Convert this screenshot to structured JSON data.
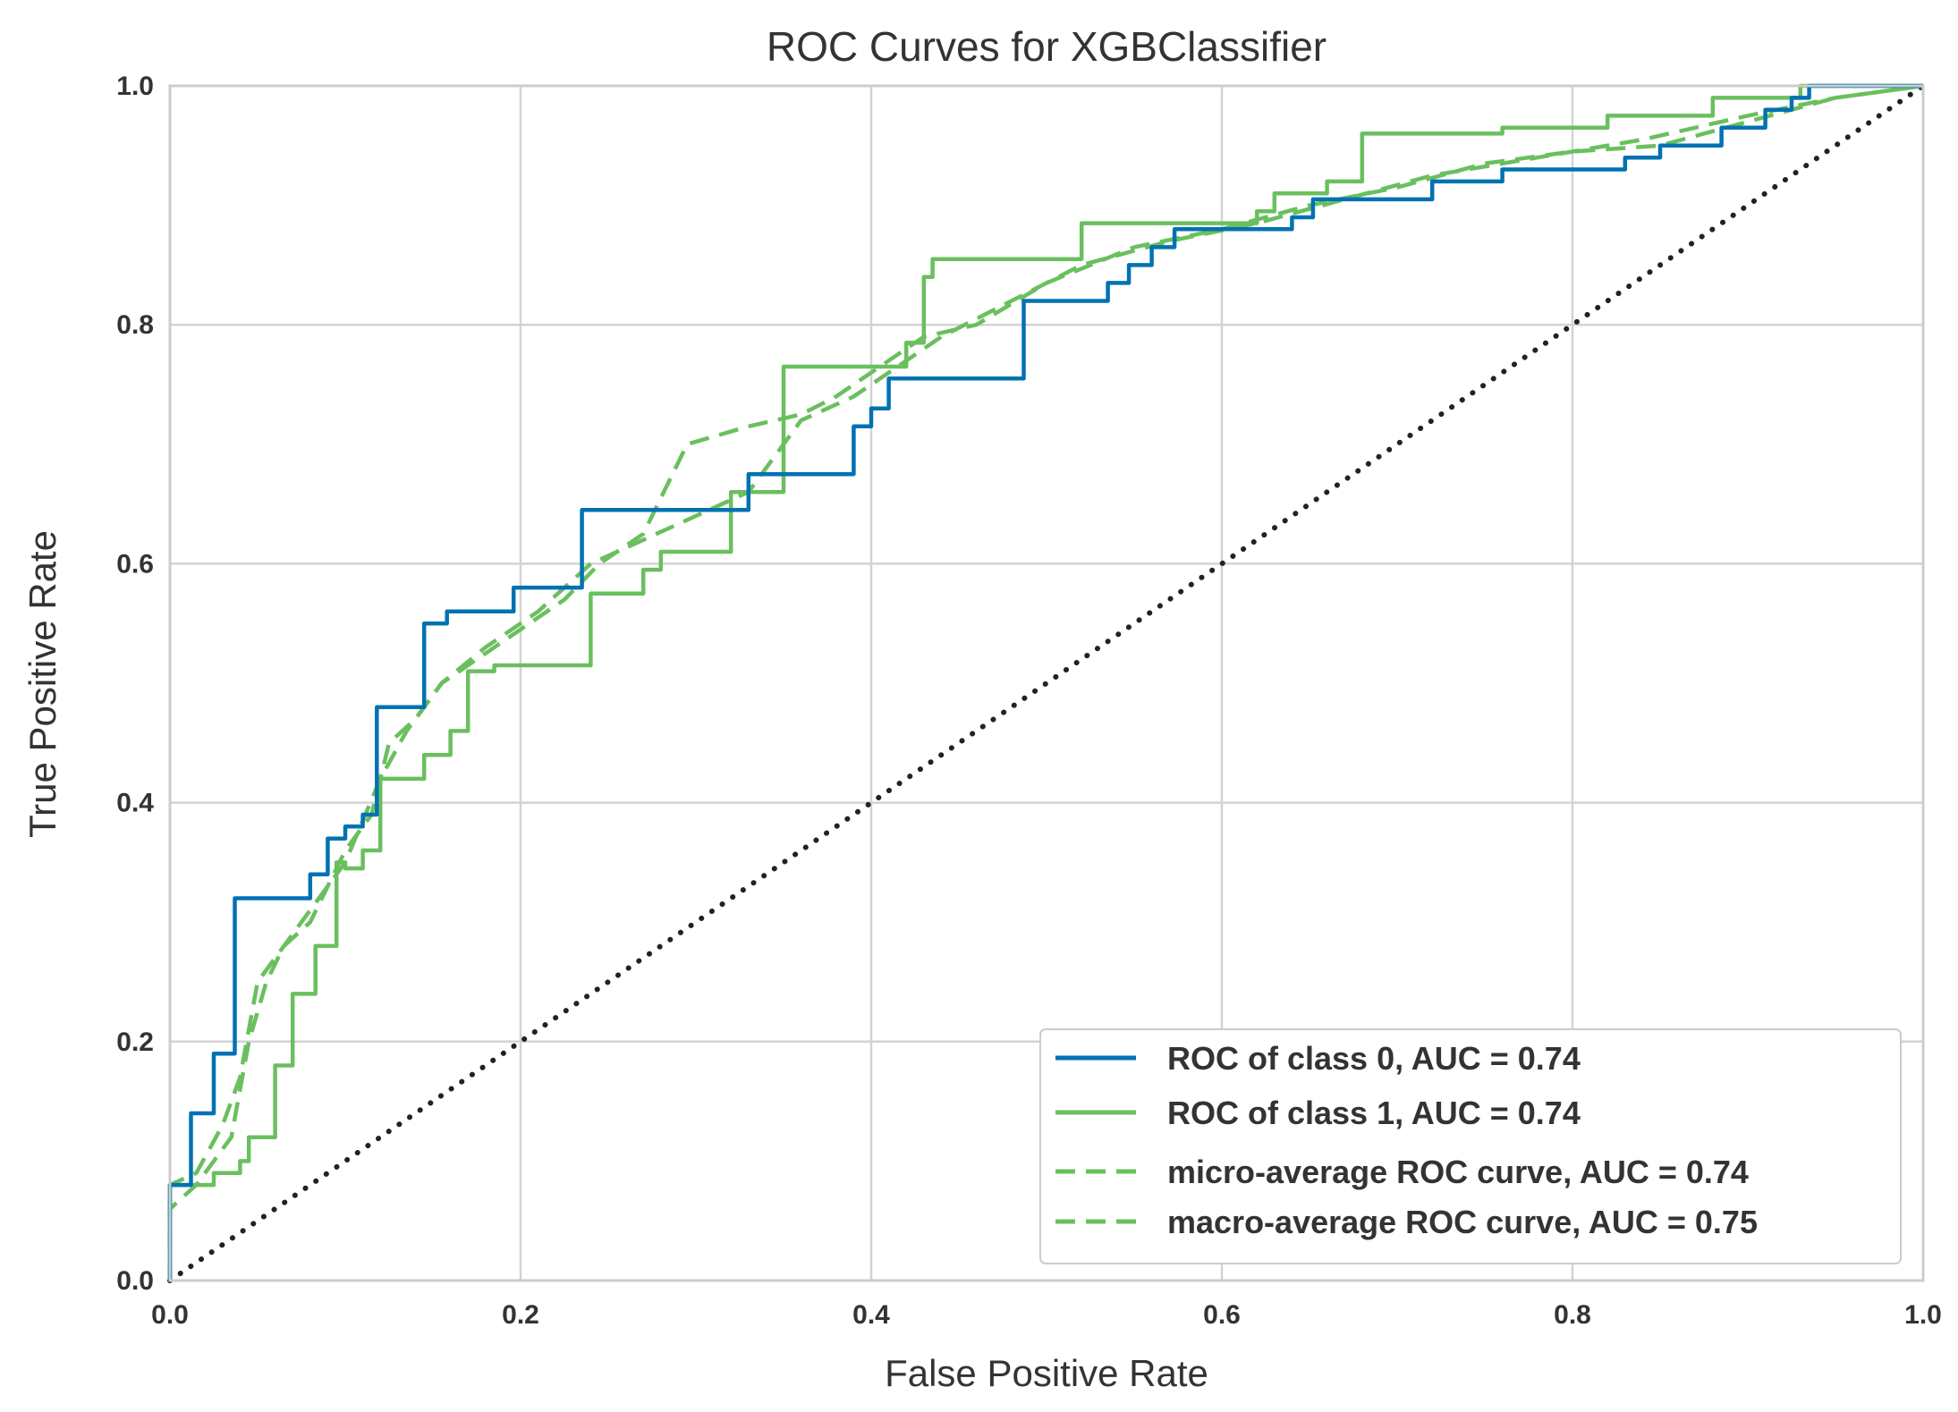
{
  "chart_data": {
    "type": "line",
    "title": "ROC Curves for XGBClassifier",
    "xlabel": "False Positive Rate",
    "ylabel": "True Positive Rate",
    "xlim": [
      0.0,
      1.0
    ],
    "ylim": [
      0.0,
      1.0
    ],
    "xticks": [
      "0.0",
      "0.2",
      "0.4",
      "0.6",
      "0.8",
      "1.0"
    ],
    "yticks": [
      "0.0",
      "0.2",
      "0.4",
      "0.6",
      "0.8",
      "1.0"
    ],
    "grid": true,
    "legend_position": "lower-right",
    "series": [
      {
        "name": "ROC of class 0, AUC = 0.74",
        "color": "#0072B2",
        "style": "solid",
        "points": [
          [
            0.0,
            0.0
          ],
          [
            0.0,
            0.08
          ],
          [
            0.012,
            0.08
          ],
          [
            0.012,
            0.14
          ],
          [
            0.025,
            0.14
          ],
          [
            0.025,
            0.19
          ],
          [
            0.037,
            0.19
          ],
          [
            0.037,
            0.32
          ],
          [
            0.08,
            0.32
          ],
          [
            0.08,
            0.34
          ],
          [
            0.09,
            0.34
          ],
          [
            0.09,
            0.37
          ],
          [
            0.1,
            0.37
          ],
          [
            0.1,
            0.38
          ],
          [
            0.11,
            0.38
          ],
          [
            0.11,
            0.39
          ],
          [
            0.118,
            0.39
          ],
          [
            0.118,
            0.48
          ],
          [
            0.145,
            0.48
          ],
          [
            0.145,
            0.55
          ],
          [
            0.158,
            0.55
          ],
          [
            0.158,
            0.56
          ],
          [
            0.18,
            0.56
          ],
          [
            0.18,
            0.56
          ],
          [
            0.196,
            0.56
          ],
          [
            0.196,
            0.58
          ],
          [
            0.235,
            0.58
          ],
          [
            0.235,
            0.645
          ],
          [
            0.33,
            0.645
          ],
          [
            0.33,
            0.675
          ],
          [
            0.39,
            0.675
          ],
          [
            0.39,
            0.715
          ],
          [
            0.4,
            0.715
          ],
          [
            0.4,
            0.73
          ],
          [
            0.41,
            0.73
          ],
          [
            0.41,
            0.755
          ],
          [
            0.487,
            0.755
          ],
          [
            0.487,
            0.82
          ],
          [
            0.535,
            0.82
          ],
          [
            0.535,
            0.835
          ],
          [
            0.547,
            0.835
          ],
          [
            0.547,
            0.85
          ],
          [
            0.56,
            0.85
          ],
          [
            0.56,
            0.865
          ],
          [
            0.573,
            0.865
          ],
          [
            0.573,
            0.88
          ],
          [
            0.64,
            0.88
          ],
          [
            0.64,
            0.89
          ],
          [
            0.652,
            0.89
          ],
          [
            0.652,
            0.905
          ],
          [
            0.72,
            0.905
          ],
          [
            0.72,
            0.92
          ],
          [
            0.76,
            0.92
          ],
          [
            0.76,
            0.93
          ],
          [
            0.83,
            0.93
          ],
          [
            0.83,
            0.94
          ],
          [
            0.85,
            0.94
          ],
          [
            0.85,
            0.95
          ],
          [
            0.885,
            0.95
          ],
          [
            0.885,
            0.965
          ],
          [
            0.91,
            0.965
          ],
          [
            0.91,
            0.98
          ],
          [
            0.925,
            0.98
          ],
          [
            0.925,
            0.99
          ],
          [
            0.935,
            0.99
          ],
          [
            0.935,
            1.0
          ],
          [
            1.0,
            1.0
          ]
        ]
      },
      {
        "name": "ROC of class 1, AUC = 0.74",
        "color": "#6ABF5E",
        "style": "solid",
        "points": [
          [
            0.0,
            0.0
          ],
          [
            0.0,
            0.08
          ],
          [
            0.025,
            0.08
          ],
          [
            0.025,
            0.09
          ],
          [
            0.04,
            0.09
          ],
          [
            0.04,
            0.1
          ],
          [
            0.045,
            0.1
          ],
          [
            0.045,
            0.12
          ],
          [
            0.06,
            0.12
          ],
          [
            0.06,
            0.18
          ],
          [
            0.07,
            0.18
          ],
          [
            0.07,
            0.24
          ],
          [
            0.083,
            0.24
          ],
          [
            0.083,
            0.28
          ],
          [
            0.095,
            0.28
          ],
          [
            0.095,
            0.35
          ],
          [
            0.1,
            0.35
          ],
          [
            0.1,
            0.345
          ],
          [
            0.11,
            0.345
          ],
          [
            0.11,
            0.36
          ],
          [
            0.12,
            0.36
          ],
          [
            0.12,
            0.42
          ],
          [
            0.145,
            0.42
          ],
          [
            0.145,
            0.44
          ],
          [
            0.16,
            0.44
          ],
          [
            0.16,
            0.46
          ],
          [
            0.17,
            0.46
          ],
          [
            0.17,
            0.51
          ],
          [
            0.185,
            0.51
          ],
          [
            0.185,
            0.515
          ],
          [
            0.24,
            0.515
          ],
          [
            0.24,
            0.575
          ],
          [
            0.27,
            0.575
          ],
          [
            0.27,
            0.595
          ],
          [
            0.28,
            0.595
          ],
          [
            0.28,
            0.61
          ],
          [
            0.32,
            0.61
          ],
          [
            0.32,
            0.66
          ],
          [
            0.33,
            0.66
          ],
          [
            0.33,
            0.66
          ],
          [
            0.35,
            0.66
          ],
          [
            0.35,
            0.765
          ],
          [
            0.42,
            0.765
          ],
          [
            0.42,
            0.785
          ],
          [
            0.43,
            0.785
          ],
          [
            0.43,
            0.84
          ],
          [
            0.435,
            0.84
          ],
          [
            0.435,
            0.855
          ],
          [
            0.52,
            0.855
          ],
          [
            0.52,
            0.885
          ],
          [
            0.62,
            0.885
          ],
          [
            0.62,
            0.895
          ],
          [
            0.63,
            0.895
          ],
          [
            0.63,
            0.91
          ],
          [
            0.66,
            0.91
          ],
          [
            0.66,
            0.92
          ],
          [
            0.68,
            0.92
          ],
          [
            0.68,
            0.96
          ],
          [
            0.76,
            0.96
          ],
          [
            0.76,
            0.965
          ],
          [
            0.82,
            0.965
          ],
          [
            0.82,
            0.975
          ],
          [
            0.88,
            0.975
          ],
          [
            0.88,
            0.99
          ],
          [
            0.93,
            0.99
          ],
          [
            0.93,
            1.0
          ],
          [
            1.0,
            1.0
          ]
        ]
      },
      {
        "name": "micro-average ROC curve, AUC = 0.74",
        "color": "#6ABF5E",
        "style": "dashed",
        "points": [
          [
            0.0,
            0.0
          ],
          [
            0.0,
            0.06
          ],
          [
            0.015,
            0.08
          ],
          [
            0.025,
            0.1
          ],
          [
            0.035,
            0.12
          ],
          [
            0.045,
            0.2
          ],
          [
            0.055,
            0.25
          ],
          [
            0.065,
            0.28
          ],
          [
            0.08,
            0.3
          ],
          [
            0.09,
            0.33
          ],
          [
            0.1,
            0.36
          ],
          [
            0.115,
            0.39
          ],
          [
            0.125,
            0.45
          ],
          [
            0.14,
            0.47
          ],
          [
            0.155,
            0.5
          ],
          [
            0.175,
            0.52
          ],
          [
            0.2,
            0.545
          ],
          [
            0.225,
            0.57
          ],
          [
            0.245,
            0.6
          ],
          [
            0.27,
            0.625
          ],
          [
            0.295,
            0.7
          ],
          [
            0.33,
            0.715
          ],
          [
            0.36,
            0.725
          ],
          [
            0.38,
            0.74
          ],
          [
            0.4,
            0.76
          ],
          [
            0.43,
            0.79
          ],
          [
            0.46,
            0.8
          ],
          [
            0.5,
            0.835
          ],
          [
            0.55,
            0.865
          ],
          [
            0.6,
            0.88
          ],
          [
            0.65,
            0.9
          ],
          [
            0.7,
            0.915
          ],
          [
            0.75,
            0.935
          ],
          [
            0.8,
            0.945
          ],
          [
            0.85,
            0.95
          ],
          [
            0.9,
            0.97
          ],
          [
            0.95,
            0.99
          ],
          [
            1.0,
            1.0
          ]
        ]
      },
      {
        "name": "macro-average ROC curve, AUC = 0.75",
        "color": "#6ABF5E",
        "style": "dashed",
        "points": [
          [
            0.0,
            0.0
          ],
          [
            0.0,
            0.08
          ],
          [
            0.015,
            0.09
          ],
          [
            0.03,
            0.13
          ],
          [
            0.04,
            0.17
          ],
          [
            0.05,
            0.25
          ],
          [
            0.065,
            0.28
          ],
          [
            0.08,
            0.31
          ],
          [
            0.1,
            0.35
          ],
          [
            0.12,
            0.42
          ],
          [
            0.135,
            0.46
          ],
          [
            0.155,
            0.5
          ],
          [
            0.18,
            0.53
          ],
          [
            0.21,
            0.56
          ],
          [
            0.24,
            0.6
          ],
          [
            0.27,
            0.62
          ],
          [
            0.3,
            0.64
          ],
          [
            0.33,
            0.66
          ],
          [
            0.36,
            0.72
          ],
          [
            0.39,
            0.74
          ],
          [
            0.42,
            0.77
          ],
          [
            0.44,
            0.79
          ],
          [
            0.48,
            0.82
          ],
          [
            0.52,
            0.85
          ],
          [
            0.57,
            0.87
          ],
          [
            0.62,
            0.885
          ],
          [
            0.67,
            0.905
          ],
          [
            0.72,
            0.925
          ],
          [
            0.78,
            0.94
          ],
          [
            0.84,
            0.955
          ],
          [
            0.9,
            0.975
          ],
          [
            0.95,
            0.99
          ],
          [
            1.0,
            1.0
          ]
        ]
      },
      {
        "name": "",
        "color": "#222222",
        "style": "dotted",
        "points": [
          [
            0.0,
            0.0
          ],
          [
            1.0,
            1.0
          ]
        ]
      }
    ]
  }
}
